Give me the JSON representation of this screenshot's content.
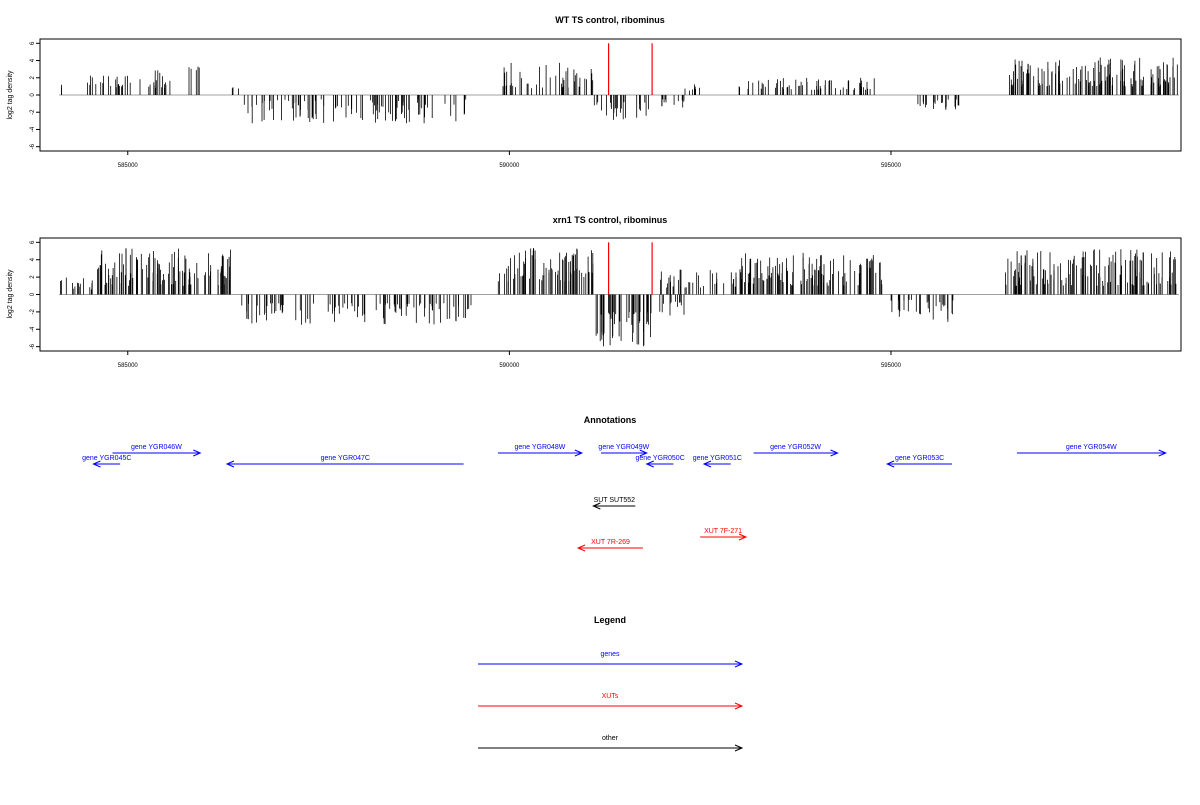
{
  "colors": {
    "density": "#000000",
    "highlight": "#ff0000",
    "genes": "#0000ff",
    "xuts": "#ff0000",
    "other": "#000000",
    "baseline": "#808080"
  },
  "chart_data": [
    {
      "type": "bar",
      "title": "WT TS control, ribominus",
      "ylabel": "log2 tag density",
      "xlim": [
        583850,
        598800
      ],
      "ylim": [
        -6.5,
        6.5
      ],
      "yticks": [
        "-6",
        "-4",
        "-2",
        "0",
        "2",
        "4",
        "6"
      ],
      "yticks_values": [
        -6,
        -4,
        -2,
        0,
        2,
        4,
        6
      ],
      "xticks": [
        "585000",
        "590000",
        "595000"
      ],
      "xticks_values": [
        585000,
        590000,
        595000
      ],
      "data_range": [
        584100,
        599050
      ],
      "baseline": 0,
      "highlight_lines": [
        591300,
        591870
      ],
      "highlight_height": 6.0,
      "density_segments": [
        {
          "start": 584100,
          "end": 584150,
          "sign": 1,
          "min": 0.8,
          "max": 1.2
        },
        {
          "start": 584400,
          "end": 585050,
          "sign": 1,
          "min": 0.8,
          "max": 2.5
        },
        {
          "start": 585150,
          "end": 585650,
          "sign": 1,
          "min": 0.8,
          "max": 3.0
        },
        {
          "start": 585800,
          "end": 585950,
          "sign": 1,
          "min": 2.5,
          "max": 3.8
        },
        {
          "start": 586350,
          "end": 586450,
          "sign": 1,
          "min": 0.6,
          "max": 1.0
        },
        {
          "start": 586500,
          "end": 589500,
          "sign": -1,
          "min": 0.5,
          "max": 3.3
        },
        {
          "start": 589900,
          "end": 591100,
          "sign": 1,
          "min": 0.8,
          "max": 3.8
        },
        {
          "start": 591100,
          "end": 591850,
          "sign": -1,
          "min": 0.8,
          "max": 3.0
        },
        {
          "start": 591950,
          "end": 592300,
          "sign": -1,
          "min": 0.5,
          "max": 1.5
        },
        {
          "start": 592250,
          "end": 592500,
          "sign": 1,
          "min": 0.5,
          "max": 1.3
        },
        {
          "start": 593000,
          "end": 594800,
          "sign": 1,
          "min": 0.6,
          "max": 2.0
        },
        {
          "start": 595300,
          "end": 595900,
          "sign": -1,
          "min": 0.5,
          "max": 1.8
        },
        {
          "start": 596550,
          "end": 598950,
          "sign": 1,
          "min": 1.0,
          "max": 4.5
        }
      ]
    },
    {
      "type": "bar",
      "title": "xrn1 TS control, ribominus",
      "ylabel": "log2 tag density",
      "xlim": [
        583850,
        598800
      ],
      "ylim": [
        -6.5,
        6.5
      ],
      "yticks": [
        "-6",
        "-4",
        "-2",
        "0",
        "2",
        "4",
        "6"
      ],
      "yticks_values": [
        -6,
        -4,
        -2,
        0,
        2,
        4,
        6
      ],
      "xticks": [
        "585000",
        "590000",
        "595000"
      ],
      "xticks_values": [
        585000,
        590000,
        595000
      ],
      "data_range": [
        584100,
        599050
      ],
      "baseline": 0,
      "highlight_lines": [
        591300,
        591870
      ],
      "highlight_height": 6.0,
      "density_segments": [
        {
          "start": 584100,
          "end": 584550,
          "sign": 1,
          "min": 0.5,
          "max": 2.0
        },
        {
          "start": 584600,
          "end": 586400,
          "sign": 1,
          "min": 1.0,
          "max": 5.5
        },
        {
          "start": 586450,
          "end": 589500,
          "sign": -1,
          "min": 1.0,
          "max": 3.5
        },
        {
          "start": 589850,
          "end": 591100,
          "sign": 1,
          "min": 1.5,
          "max": 5.8
        },
        {
          "start": 591100,
          "end": 591900,
          "sign": -1,
          "min": 2.0,
          "max": 6.0
        },
        {
          "start": 591950,
          "end": 592300,
          "sign": -1,
          "min": 0.8,
          "max": 2.5
        },
        {
          "start": 591950,
          "end": 593000,
          "sign": 1,
          "min": 0.8,
          "max": 3.0
        },
        {
          "start": 593000,
          "end": 594900,
          "sign": 1,
          "min": 1.0,
          "max": 4.8
        },
        {
          "start": 595000,
          "end": 595900,
          "sign": -1,
          "min": 0.5,
          "max": 3.3
        },
        {
          "start": 596500,
          "end": 599050,
          "sign": 1,
          "min": 1.0,
          "max": 5.2
        }
      ]
    }
  ],
  "annotations": {
    "title": "Annotations",
    "features": [
      {
        "label": "gene YGR045C",
        "start": 584550,
        "end": 584900,
        "strand": "-",
        "type": "gene",
        "row": 2
      },
      {
        "label": "gene YGR046W",
        "start": 584800,
        "end": 585950,
        "strand": "+",
        "type": "gene",
        "row": 1
      },
      {
        "label": "gene YGR047C",
        "start": 586300,
        "end": 589400,
        "strand": "-",
        "type": "gene",
        "row": 2
      },
      {
        "label": "gene YGR048W",
        "start": 589850,
        "end": 590950,
        "strand": "+",
        "type": "gene",
        "row": 1
      },
      {
        "label": "gene YGR049W",
        "start": 591200,
        "end": 591800,
        "strand": "+",
        "type": "gene",
        "row": 1
      },
      {
        "label": "gene YGR050C",
        "start": 591800,
        "end": 592150,
        "strand": "-",
        "type": "gene",
        "row": 2
      },
      {
        "label": "gene YGR051C",
        "start": 592550,
        "end": 592900,
        "strand": "-",
        "type": "gene",
        "row": 2
      },
      {
        "label": "gene YGR052W",
        "start": 593200,
        "end": 594300,
        "strand": "+",
        "type": "gene",
        "row": 1
      },
      {
        "label": "gene YGR053C",
        "start": 594950,
        "end": 595800,
        "strand": "-",
        "type": "gene",
        "row": 2
      },
      {
        "label": "gene YGR054W",
        "start": 596650,
        "end": 598600,
        "strand": "+",
        "type": "gene",
        "row": 1
      },
      {
        "label": "SUT SUT552",
        "start": 591100,
        "end": 591650,
        "strand": "-",
        "type": "other",
        "row": 3
      },
      {
        "label": "XUT 7F-271",
        "start": 592500,
        "end": 593100,
        "strand": "+",
        "type": "xut",
        "row": 4
      },
      {
        "label": "XUT 7R-269",
        "start": 590900,
        "end": 591750,
        "strand": "-",
        "type": "xut",
        "row": 5
      }
    ]
  },
  "legend": {
    "title": "Legend",
    "items": [
      {
        "label": "genes",
        "type": "gene"
      },
      {
        "label": "XUTs",
        "type": "xut"
      },
      {
        "label": "other",
        "type": "other"
      }
    ]
  }
}
